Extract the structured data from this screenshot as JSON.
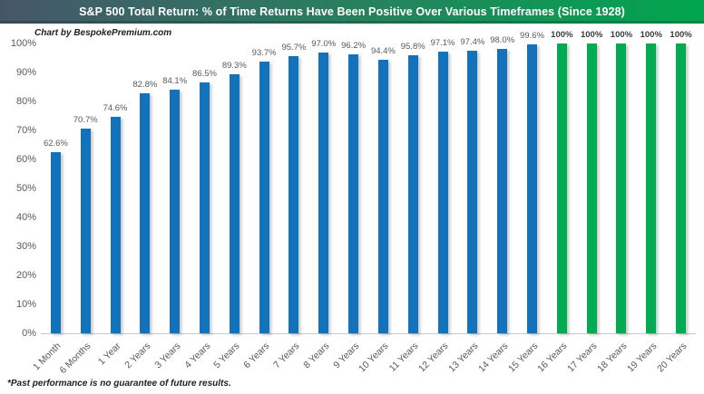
{
  "header": {
    "title": "S&P 500 Total Return: % of Time Returns Have Been Positive Over Various Timeframes (Since 1928)"
  },
  "watermark": "Chart by BespokePremium.com",
  "footnote": "*Past performance is no guarantee of future results.",
  "colors": {
    "header_left": "#46566A",
    "header_right": "#00A64F",
    "bar_blue": "#1272BC",
    "bar_green": "#00AB51",
    "data_label": "#595959",
    "data_label_max": "#3B3B3B",
    "axis_text": "#595959",
    "axis_line": "#C8C8C8"
  },
  "chart_data": {
    "type": "bar",
    "title": "S&P 500 Total Return: % of Time Returns Have Been Positive Over Various Timeframes (Since 1928)",
    "xlabel": "",
    "ylabel": "",
    "ylim": [
      0,
      100
    ],
    "grid": false,
    "legend": false,
    "yticks": [
      "0%",
      "10%",
      "20%",
      "30%",
      "40%",
      "50%",
      "60%",
      "70%",
      "80%",
      "90%",
      "100%"
    ],
    "categories": [
      "1 Month",
      "6 Months",
      "1 Year",
      "2 Years",
      "3 Years",
      "4 Years",
      "5 Years",
      "6 Years",
      "7 Years",
      "8 Years",
      "9 Years",
      "10 Years",
      "11 Years",
      "12 Years",
      "13 Years",
      "14 Years",
      "15 Years",
      "16 Years",
      "17 Years",
      "18 Years",
      "19 Years",
      "20 Years"
    ],
    "values": [
      62.6,
      70.7,
      74.6,
      82.8,
      84.1,
      86.5,
      89.3,
      93.7,
      95.7,
      97.0,
      96.2,
      94.4,
      95.8,
      97.1,
      97.4,
      98.0,
      99.6,
      100,
      100,
      100,
      100,
      100
    ],
    "labels": [
      "62.6%",
      "70.7%",
      "74.6%",
      "82.8%",
      "84.1%",
      "86.5%",
      "89.3%",
      "93.7%",
      "95.7%",
      "97.0%",
      "96.2%",
      "94.4%",
      "95.8%",
      "97.1%",
      "97.4%",
      "98.0%",
      "99.6%",
      "100%",
      "100%",
      "100%",
      "100%",
      "100%"
    ],
    "bar_colors": [
      "blue",
      "blue",
      "blue",
      "blue",
      "blue",
      "blue",
      "blue",
      "blue",
      "blue",
      "blue",
      "blue",
      "blue",
      "blue",
      "blue",
      "blue",
      "blue",
      "blue",
      "green",
      "green",
      "green",
      "green",
      "green"
    ]
  }
}
